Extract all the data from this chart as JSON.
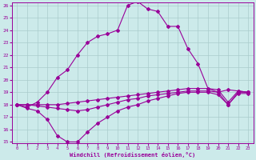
{
  "x": [
    0,
    1,
    2,
    3,
    4,
    5,
    6,
    7,
    8,
    9,
    10,
    11,
    12,
    13,
    14,
    15,
    16,
    17,
    18,
    19,
    20,
    21,
    22,
    23
  ],
  "line_hump": [
    18.0,
    17.8,
    18.2,
    19.0,
    20.2,
    20.8,
    22.0,
    23.0,
    23.5,
    23.7,
    24.0,
    26.0,
    26.3,
    25.7,
    25.5,
    24.3,
    24.3,
    22.5,
    21.3,
    19.3,
    19.0,
    19.2,
    19.1,
    19.0
  ],
  "line_flat1": [
    18.0,
    18.0,
    18.0,
    18.0,
    18.0,
    18.1,
    18.2,
    18.3,
    18.4,
    18.5,
    18.6,
    18.7,
    18.8,
    18.9,
    19.0,
    19.1,
    19.2,
    19.3,
    19.3,
    19.3,
    19.2,
    18.2,
    19.1,
    19.0
  ],
  "line_flat2": [
    18.0,
    18.0,
    17.9,
    17.8,
    17.7,
    17.6,
    17.5,
    17.6,
    17.8,
    18.0,
    18.2,
    18.4,
    18.5,
    18.7,
    18.8,
    18.9,
    19.0,
    19.1,
    19.1,
    19.1,
    19.0,
    18.0,
    19.0,
    19.0
  ],
  "line_dip": [
    18.0,
    17.7,
    17.5,
    16.8,
    15.5,
    15.0,
    15.0,
    15.8,
    16.5,
    17.0,
    17.5,
    17.8,
    18.0,
    18.3,
    18.5,
    18.7,
    18.9,
    19.0,
    19.0,
    19.0,
    18.8,
    18.0,
    18.9,
    18.9
  ],
  "color": "#990099",
  "background": "#cceaea",
  "grid_color": "#aacccc",
  "xlabel": "Windchill (Refroidissement éolien,°C)",
  "ylim": [
    15,
    26
  ],
  "xlim": [
    -0.5,
    23.5
  ],
  "yticks": [
    15,
    16,
    17,
    18,
    19,
    20,
    21,
    22,
    23,
    24,
    25,
    26
  ],
  "xticks": [
    0,
    1,
    2,
    3,
    4,
    5,
    6,
    7,
    8,
    9,
    10,
    11,
    12,
    13,
    14,
    15,
    16,
    17,
    18,
    19,
    20,
    21,
    22,
    23
  ]
}
